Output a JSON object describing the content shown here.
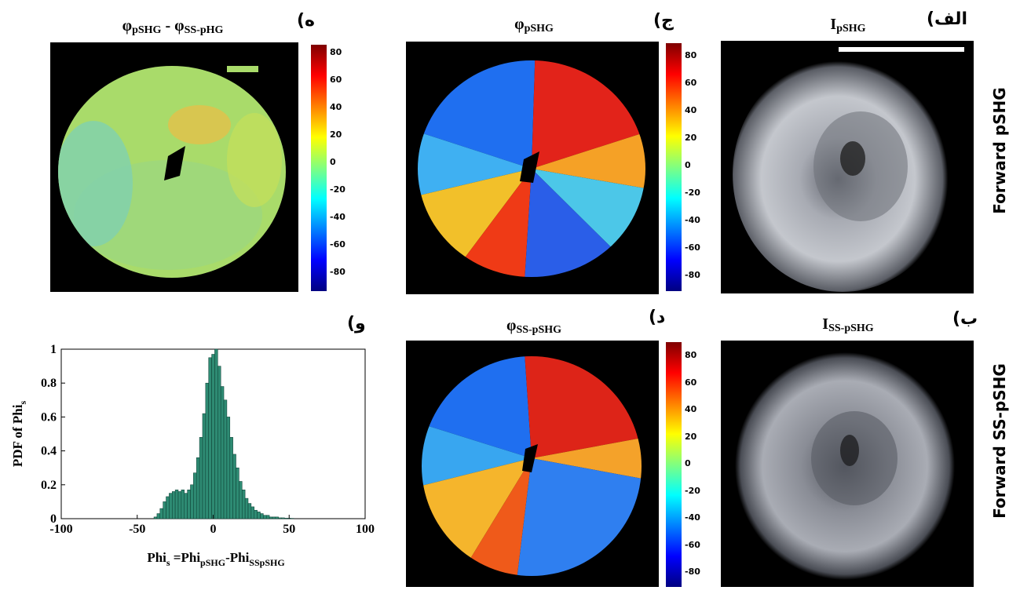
{
  "row_labels": {
    "top": "Forward pSHG",
    "bottom": "Forward SS-pSHG"
  },
  "panels": {
    "a": {
      "label": "الف)",
      "title_main": "I",
      "title_sub": "pSHG"
    },
    "b": {
      "label": "ب)",
      "title_main": "I",
      "title_sub": "SS-pSHG"
    },
    "c": {
      "label": "ج)",
      "title_main": "φ",
      "title_sub": "pSHG"
    },
    "d": {
      "label": "د)",
      "title_main": "φ",
      "title_sub": "SS-pSHG"
    },
    "e": {
      "label": "ه)",
      "title_main": "φ",
      "title_sub": "pSHG",
      "title_sep": " - φ",
      "title_sub2": "SS-pHG"
    },
    "f": {
      "label": "و)"
    }
  },
  "colorbar_ticks": [
    "80",
    "60",
    "40",
    "20",
    "0",
    "-20",
    "-40",
    "-60",
    "-80"
  ],
  "colors": {
    "bar_fill": "#2e8b73",
    "bar_edge": "#0b3b30",
    "background": "#ffffff",
    "image_bg": "#000000"
  },
  "chart_data": {
    "type": "bar",
    "title": "",
    "xlabel": "Phi_s = Phi_pSHG - Phi_SSpSHG",
    "xlabel_parts": {
      "a": "Phi",
      "a_sub": "s",
      "b": " =Phi",
      "b_sub": "pSHG",
      "c": "-Phi",
      "c_sub": "SSpSHG"
    },
    "ylabel": "PDF of Phi_s",
    "ylabel_parts": {
      "a": "PDF of Phi",
      "a_sub": "s"
    },
    "xlim": [
      -100,
      100
    ],
    "ylim": [
      0,
      1
    ],
    "xticks": [
      "-100",
      "-50",
      "0",
      "50",
      "100"
    ],
    "yticks": [
      "0",
      "0.2",
      "0.4",
      "0.6",
      "0.8",
      "1"
    ],
    "x": [
      -38,
      -36,
      -34,
      -32,
      -30,
      -28,
      -26,
      -24,
      -22,
      -20,
      -18,
      -16,
      -14,
      -12,
      -10,
      -8,
      -6,
      -4,
      -2,
      0,
      2,
      4,
      6,
      8,
      10,
      12,
      14,
      16,
      18,
      20,
      22,
      24,
      26,
      28,
      30,
      32,
      34,
      36,
      38,
      40,
      42,
      44,
      46,
      48,
      50,
      52
    ],
    "values": [
      0.01,
      0.03,
      0.06,
      0.1,
      0.13,
      0.15,
      0.16,
      0.17,
      0.16,
      0.17,
      0.15,
      0.17,
      0.2,
      0.27,
      0.36,
      0.48,
      0.62,
      0.8,
      0.95,
      0.97,
      1.0,
      0.9,
      0.78,
      0.7,
      0.6,
      0.48,
      0.38,
      0.3,
      0.22,
      0.17,
      0.12,
      0.09,
      0.07,
      0.05,
      0.04,
      0.03,
      0.02,
      0.02,
      0.01,
      0.01,
      0.01,
      0.005,
      0.005,
      0.003,
      0.003,
      0.002
    ]
  }
}
